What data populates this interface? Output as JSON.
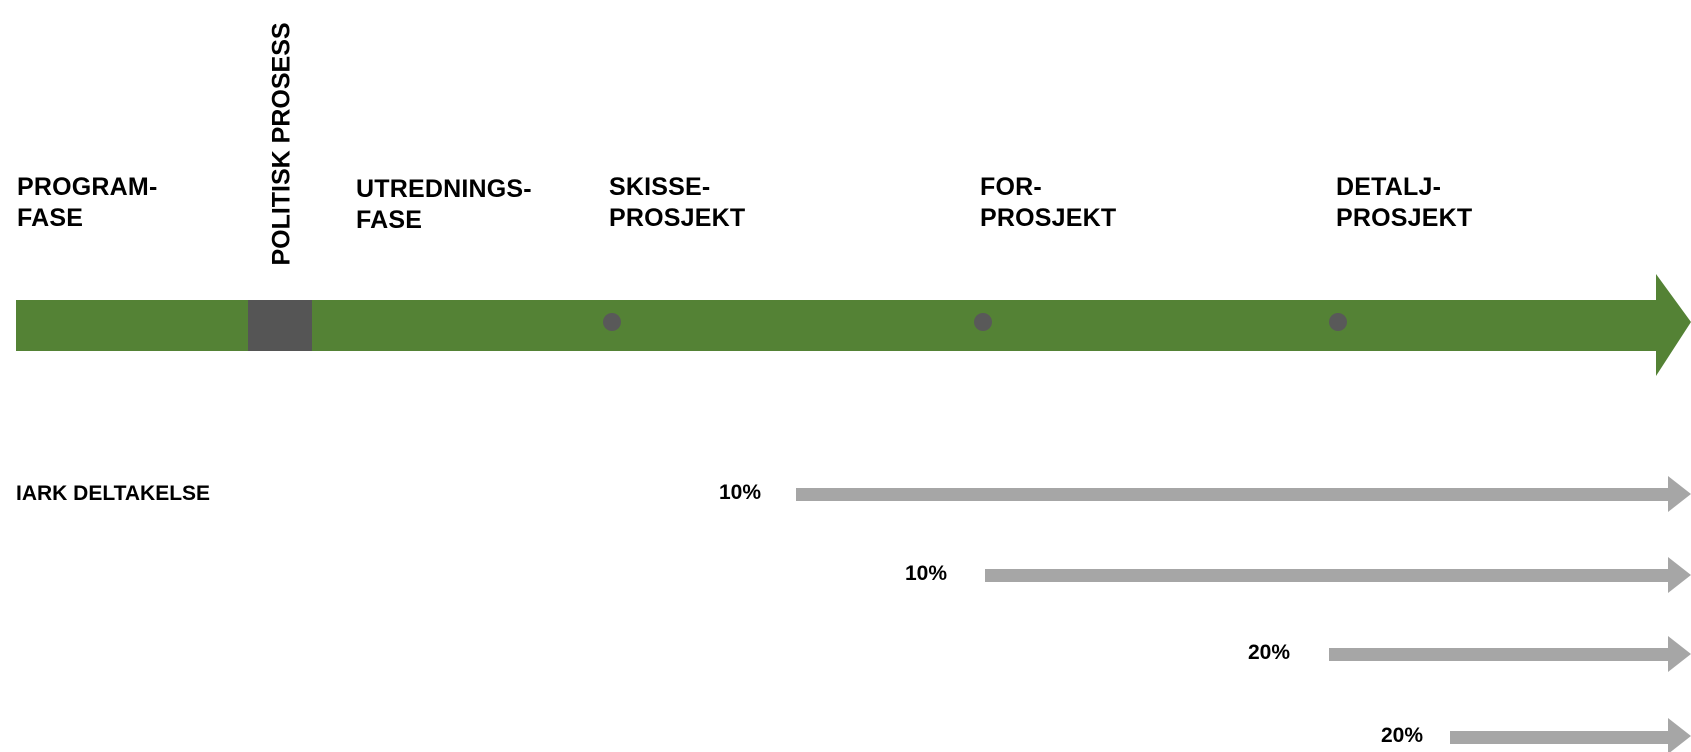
{
  "colors": {
    "main_arrow": "#548235",
    "gate": "#555555",
    "milestone": "#595959",
    "participation_arrow": "#a6a6a6"
  },
  "phases": [
    {
      "line1": "PROGRAM-",
      "line2": "FASE"
    },
    {
      "line1": "UTREDNINGS-",
      "line2": "FASE"
    },
    {
      "line1": "SKISSE-",
      "line2": "PROSJEKT"
    },
    {
      "line1": "FOR-",
      "line2": "PROSJEKT"
    },
    {
      "line1": "DETALJ-",
      "line2": "PROSJEKT"
    }
  ],
  "gate_label": "POLITISK PROSESS",
  "participation": {
    "label": "IARK DELTAKELSE",
    "rows": [
      {
        "percent": "10%"
      },
      {
        "percent": "10%"
      },
      {
        "percent": "20%"
      },
      {
        "percent": "20%"
      }
    ]
  }
}
